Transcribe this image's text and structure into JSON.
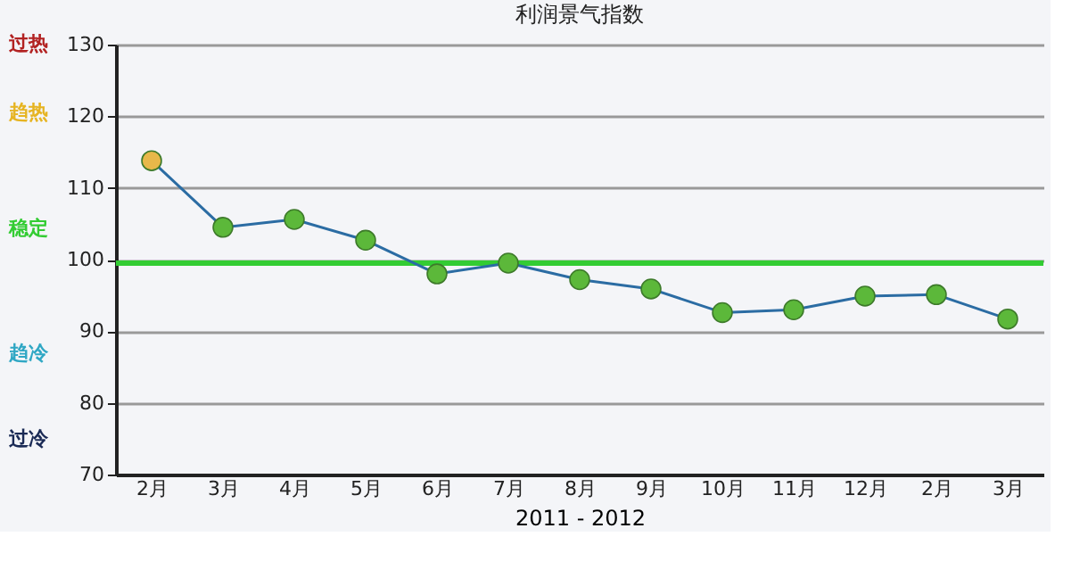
{
  "chart_data": {
    "type": "line",
    "title": "利润景气指数",
    "xlabel": "2011 - 2012",
    "categories": [
      "2月",
      "3月",
      "4月",
      "5月",
      "6月",
      "7月",
      "8月",
      "9月",
      "10月",
      "11月",
      "12月",
      "2月",
      "3月"
    ],
    "series": [
      {
        "color": "#2b6ca3",
        "colors": [
          "#e8b84a",
          "#5cb83a",
          "#5cb83a",
          "#5cb83a",
          "#5cb83a",
          "#5cb83a",
          "#5cb83a",
          "#5cb83a",
          "#5cb83a",
          "#5cb83a",
          "#5cb83a",
          "#5cb83a",
          "#5cb83a"
        ],
        "values": [
          113.8,
          104.5,
          105.6,
          102.7,
          98.0,
          99.5,
          97.2,
          95.9,
          92.6,
          93.0,
          94.9,
          95.1,
          91.7
        ]
      }
    ],
    "ylim": [
      70,
      130
    ],
    "yticks": [
      70,
      80,
      90,
      100,
      110,
      120,
      130
    ],
    "grid": "y",
    "marker": "circle",
    "line_style": "solid",
    "ref_lines": [
      {
        "axis": "y",
        "value": 99.5,
        "color": "#33cc33"
      }
    ],
    "annotations": [
      "过热",
      "趋热",
      "稳定",
      "趋冷",
      "过冷"
    ]
  }
}
